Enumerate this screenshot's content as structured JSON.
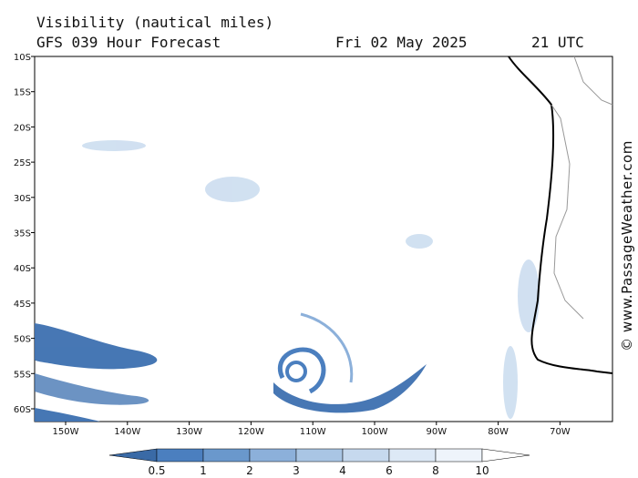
{
  "header": {
    "title": "Visibility (nautical miles)",
    "subtitle": "GFS 039 Hour Forecast",
    "date": "Fri 02 May 2025",
    "time": "21 UTC"
  },
  "map": {
    "lat_labels": [
      "10S",
      "15S",
      "20S",
      "25S",
      "30S",
      "35S",
      "40S",
      "45S",
      "50S",
      "55S",
      "60S"
    ],
    "lon_labels": [
      "150W",
      "140W",
      "130W",
      "120W",
      "110W",
      "100W",
      "90W",
      "80W",
      "70W"
    ],
    "watermark": "© www.PassageWeather.com"
  },
  "colorbar": {
    "labels": [
      0.5,
      1,
      2,
      3,
      4,
      6,
      8,
      10
    ],
    "colors": [
      "#3a6aa6",
      "#4b7fbf",
      "#6a98cc",
      "#8cb0da",
      "#a9c5e4",
      "#c6d9ee",
      "#dde9f6",
      "#eef4fb",
      "#ffffff"
    ]
  }
}
